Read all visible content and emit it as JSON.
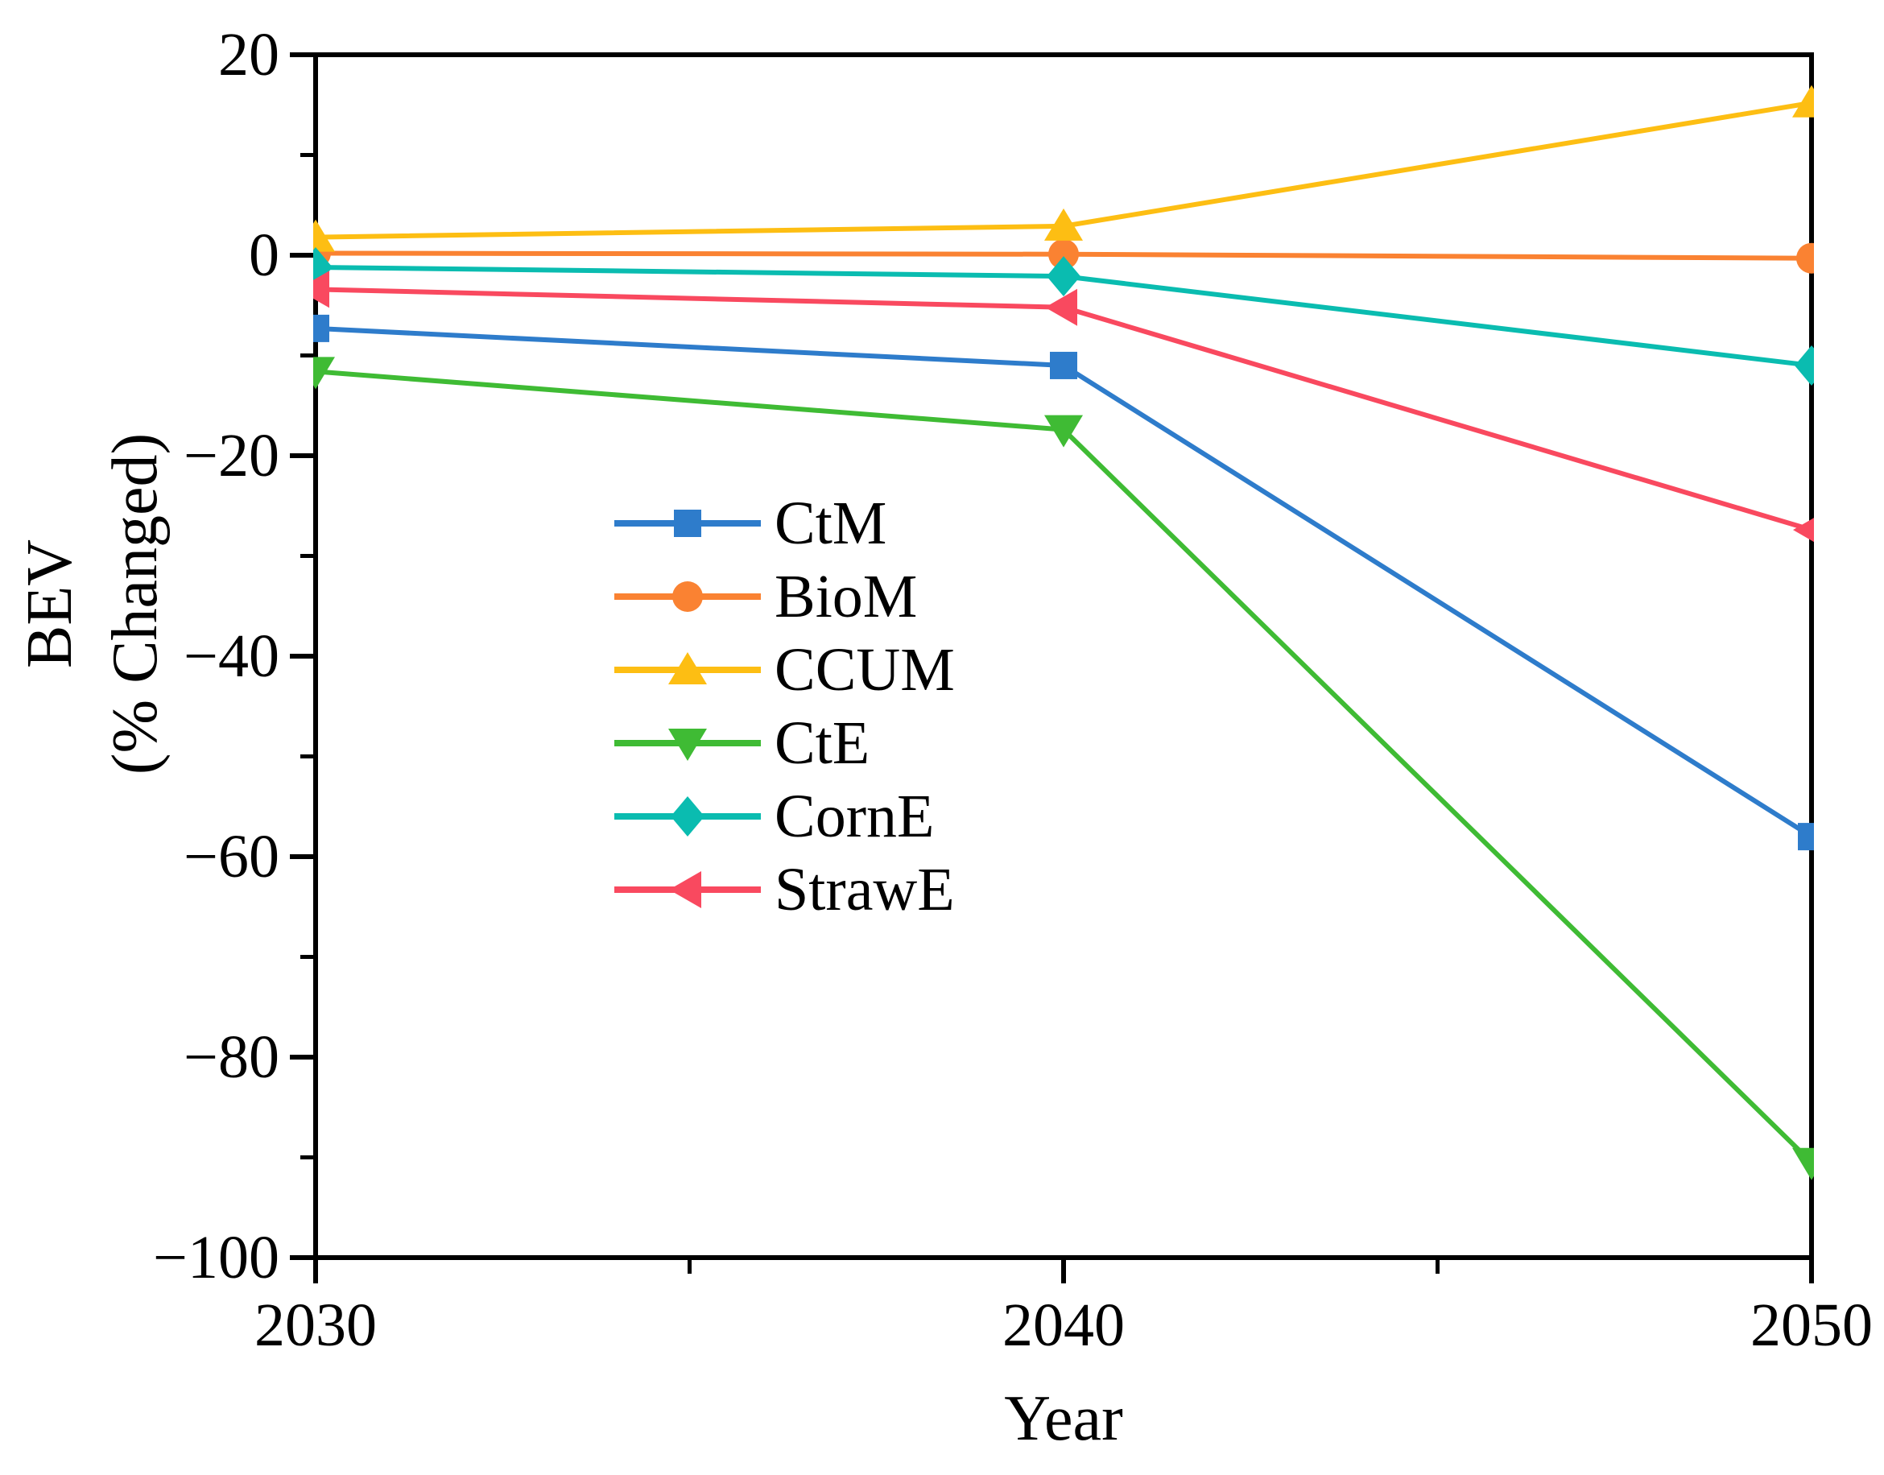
{
  "chart_data": {
    "type": "line",
    "title": "",
    "xlabel": "Year",
    "ylabel_lines": [
      "BEV",
      "(% Changed)"
    ],
    "x": [
      2030,
      2040,
      2050
    ],
    "xlim": [
      2030,
      2050
    ],
    "ylim": [
      -100,
      20
    ],
    "x_major_ticks": [
      2030,
      2040,
      2050
    ],
    "x_minor_ticks": [
      2035,
      2045
    ],
    "y_major_ticks": [
      20,
      0,
      -20,
      -40,
      -60,
      -80,
      -100
    ],
    "y_minor_ticks": [
      10,
      -10,
      -30,
      -50,
      -70,
      -90
    ],
    "grid": false,
    "legend_position": "inside-middle-left",
    "axis_color": "#000000",
    "series": [
      {
        "name": "CtM",
        "color": "#2E7CCB",
        "marker": "square",
        "values": [
          -7.3,
          -11.0,
          -58.0
        ]
      },
      {
        "name": "BioM",
        "color": "#FA8232",
        "marker": "circle",
        "values": [
          0.2,
          0.1,
          -0.3
        ]
      },
      {
        "name": "CCUM",
        "color": "#FDBE13",
        "marker": "triangle-up",
        "values": [
          1.8,
          2.9,
          15.2
        ]
      },
      {
        "name": "CtE",
        "color": "#3FBB34",
        "marker": "triangle-down",
        "values": [
          -11.6,
          -17.4,
          -90.5
        ]
      },
      {
        "name": "CornE",
        "color": "#0ABCB0",
        "marker": "diamond",
        "values": [
          -1.2,
          -2.1,
          -11.0
        ]
      },
      {
        "name": "StrawE",
        "color": "#F9495F",
        "marker": "triangle-left",
        "values": [
          -3.4,
          -5.2,
          -27.4
        ]
      }
    ]
  }
}
